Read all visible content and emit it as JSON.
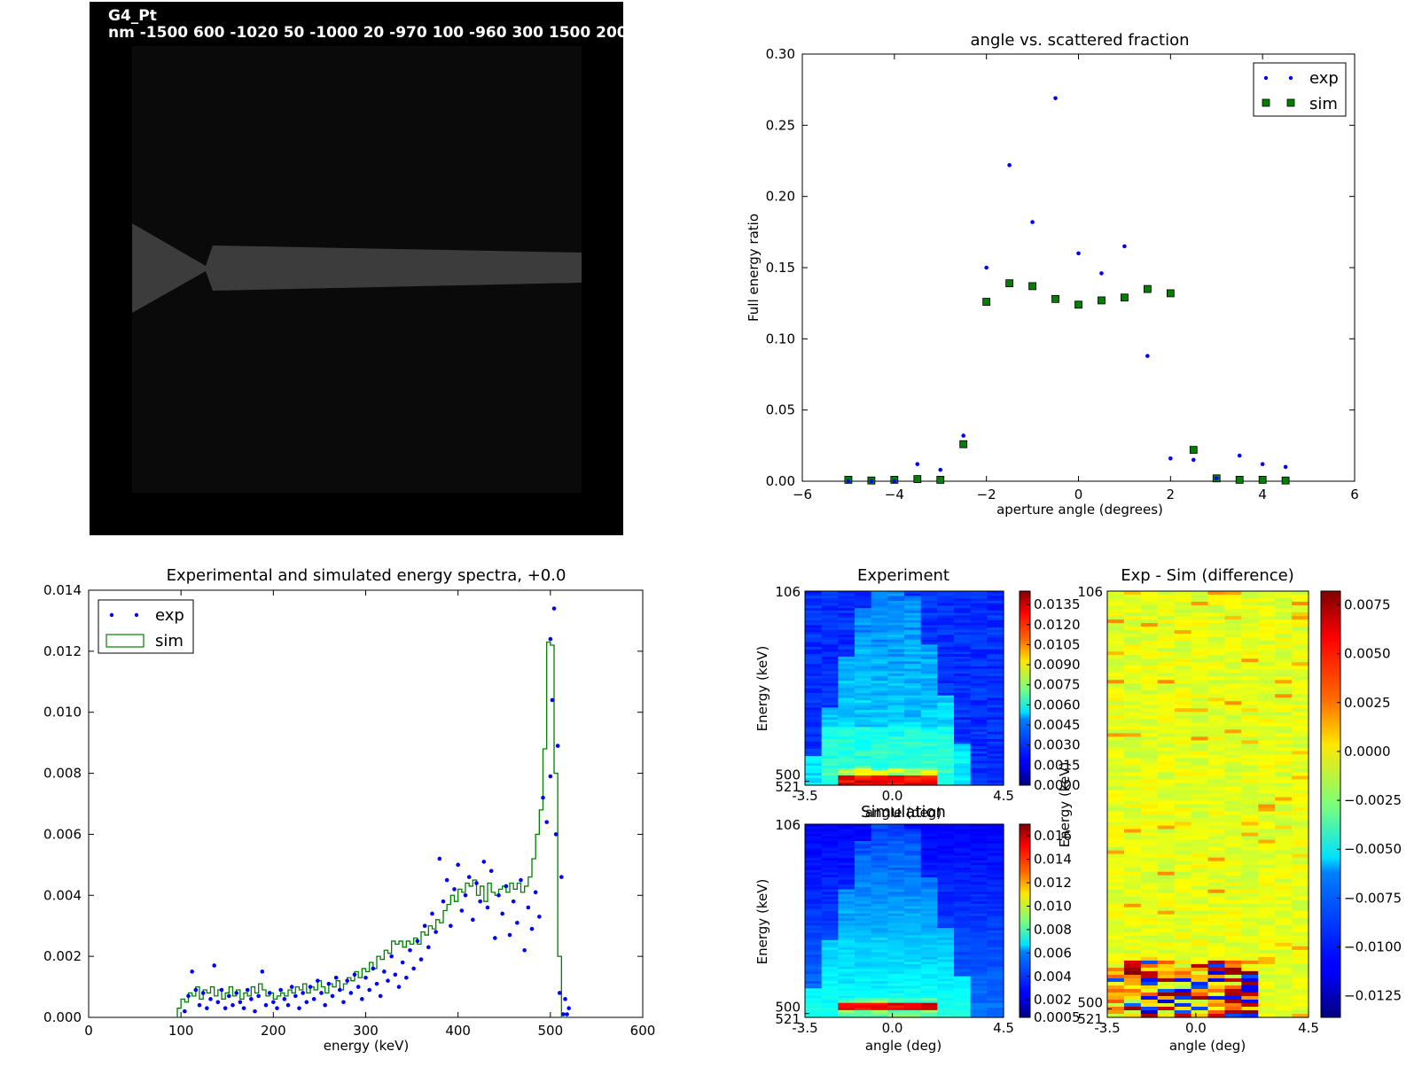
{
  "colors": {
    "exp": "#0000ff",
    "sim": "#008000",
    "sim_marker_edge": "#000000",
    "image_bg": "#000000",
    "image_detector": "#3c3c3c",
    "image_frame": "#0a0a0a"
  },
  "detector_image": {
    "title_line1": "G4_Pt",
    "title_line2": "nm -1500 600 -1020 50 -1000 20 -970 100 -960 300 1500 200"
  },
  "chart_data": [
    {
      "id": "scatter-fraction",
      "type": "scatter",
      "title": "angle vs. scattered fraction",
      "xlabel": "aperture angle (degrees)",
      "ylabel": "Full energy ratio",
      "xlim": [
        -6,
        6
      ],
      "ylim": [
        0,
        0.3
      ],
      "xticks": [
        -6,
        -4,
        -2,
        0,
        2,
        4,
        6
      ],
      "xtick_labels": [
        "−6",
        "−4",
        "−2",
        "0",
        "2",
        "4",
        "6"
      ],
      "yticks": [
        0,
        0.05,
        0.1,
        0.15,
        0.2,
        0.25,
        0.3
      ],
      "ytick_labels": [
        "0.00",
        "0.05",
        "0.10",
        "0.15",
        "0.20",
        "0.25",
        "0.30"
      ],
      "legend_position": "top-right",
      "series": [
        {
          "name": "exp",
          "marker": "dot",
          "x": [
            -5,
            -4.5,
            -4,
            -3.5,
            -3,
            -2.5,
            -2,
            -1.5,
            -1,
            -0.5,
            0,
            0.5,
            1,
            1.5,
            2,
            2.5,
            3,
            3.5,
            4,
            4.5
          ],
          "y": [
            0,
            0,
            0,
            0.012,
            0.008,
            0.032,
            0.15,
            0.222,
            0.182,
            0.269,
            0.16,
            0.146,
            0.165,
            0.088,
            0.016,
            0.015,
            0.002,
            0.018,
            0.012,
            0.01
          ]
        },
        {
          "name": "sim",
          "marker": "square",
          "x": [
            -5,
            -4.5,
            -4,
            -3.5,
            -3,
            -2.5,
            -2,
            -1.5,
            -1,
            -0.5,
            0,
            0.5,
            1,
            1.5,
            2,
            2.5,
            3,
            3.5,
            4,
            4.5
          ],
          "y": [
            0.001,
            0.0005,
            0.001,
            0.0015,
            0.001,
            0.026,
            0.126,
            0.139,
            0.137,
            0.128,
            0.124,
            0.127,
            0.129,
            0.135,
            0.132,
            0.022,
            0.002,
            0.001,
            0.001,
            0.0005
          ]
        }
      ]
    },
    {
      "id": "energy-spectra",
      "type": "line",
      "title": "Experimental and simulated energy spectra, +0.0",
      "xlabel": "energy (keV)",
      "ylabel": "",
      "xlim": [
        0,
        600
      ],
      "ylim": [
        0,
        0.014
      ],
      "xticks": [
        0,
        100,
        200,
        300,
        400,
        500,
        600
      ],
      "xtick_labels": [
        "0",
        "100",
        "200",
        "300",
        "400",
        "500",
        "600"
      ],
      "yticks": [
        0,
        0.002,
        0.004,
        0.006,
        0.008,
        0.01,
        0.012,
        0.014
      ],
      "ytick_labels": [
        "0.000",
        "0.002",
        "0.004",
        "0.006",
        "0.008",
        "0.010",
        "0.012",
        "0.014"
      ],
      "legend_position": "top-left",
      "series": [
        {
          "name": "exp",
          "marker": "dot",
          "x": [
            104,
            108,
            112,
            116,
            120,
            124,
            128,
            132,
            136,
            140,
            144,
            148,
            152,
            156,
            160,
            164,
            168,
            172,
            176,
            180,
            184,
            188,
            192,
            196,
            200,
            204,
            208,
            212,
            216,
            220,
            224,
            228,
            232,
            236,
            240,
            244,
            248,
            252,
            256,
            260,
            264,
            268,
            272,
            276,
            280,
            284,
            288,
            292,
            296,
            300,
            304,
            308,
            312,
            316,
            320,
            324,
            328,
            332,
            336,
            340,
            344,
            348,
            352,
            356,
            360,
            364,
            368,
            372,
            376,
            380,
            384,
            388,
            392,
            396,
            400,
            404,
            408,
            412,
            416,
            420,
            424,
            428,
            432,
            436,
            440,
            444,
            448,
            452,
            456,
            460,
            464,
            468,
            472,
            476,
            480,
            484,
            488,
            492,
            496,
            500,
            504,
            508,
            512,
            516,
            520
          ],
          "y": [
            0.0002,
            0.0007,
            0.0015,
            0.0009,
            0.0004,
            0.0008,
            0.0003,
            0.0006,
            0.0017,
            0.0005,
            0.0009,
            0.0003,
            0.0007,
            0.0004,
            0.0008,
            0.0005,
            0.0003,
            0.0009,
            0.0006,
            0.0002,
            0.0007,
            0.0015,
            0.0004,
            0.0008,
            0.0005,
            0.0003,
            0.0009,
            0.0006,
            0.0004,
            0.001,
            0.0007,
            0.0003,
            0.0008,
            0.0005,
            0.001,
            0.0006,
            0.0012,
            0.0008,
            0.0004,
            0.0011,
            0.0007,
            0.0013,
            0.0009,
            0.0005,
            0.0012,
            0.0008,
            0.0014,
            0.001,
            0.0006,
            0.0013,
            0.0009,
            0.0016,
            0.0011,
            0.0007,
            0.0015,
            0.0012,
            0.002,
            0.0014,
            0.001,
            0.0018,
            0.0013,
            0.0022,
            0.0016,
            0.0025,
            0.0019,
            0.003,
            0.0023,
            0.0034,
            0.0028,
            0.0052,
            0.0038,
            0.0045,
            0.003,
            0.0042,
            0.005,
            0.0035,
            0.004,
            0.0046,
            0.0032,
            0.0044,
            0.0038,
            0.0051,
            0.0036,
            0.0048,
            0.0026,
            0.004,
            0.0034,
            0.0043,
            0.0027,
            0.0038,
            0.0031,
            0.0045,
            0.0022,
            0.0036,
            0.0029,
            0.0041,
            0.0033,
            0.0072,
            0.0064,
            0.0124,
            0.0134,
            0.0089,
            0.0046,
            0.0006,
            0.0003
          ],
          "x_extra": [
            500,
            502,
            506,
            510,
            514,
            518
          ],
          "y_extra": [
            0.0079,
            0.0104,
            0.006,
            0.0008,
            0.0001,
            0.0001
          ]
        },
        {
          "name": "sim",
          "marker": "step",
          "x": [
            96,
            100,
            104,
            108,
            112,
            116,
            120,
            124,
            128,
            132,
            136,
            140,
            144,
            148,
            152,
            156,
            160,
            164,
            168,
            172,
            176,
            180,
            184,
            188,
            192,
            196,
            200,
            204,
            208,
            212,
            216,
            220,
            224,
            228,
            232,
            236,
            240,
            244,
            248,
            252,
            256,
            260,
            264,
            268,
            272,
            276,
            280,
            284,
            288,
            292,
            296,
            300,
            304,
            308,
            312,
            316,
            320,
            324,
            328,
            332,
            336,
            340,
            344,
            348,
            352,
            356,
            360,
            364,
            368,
            372,
            376,
            380,
            384,
            388,
            392,
            396,
            400,
            404,
            408,
            412,
            416,
            420,
            424,
            428,
            432,
            436,
            440,
            444,
            448,
            452,
            456,
            460,
            464,
            468,
            472,
            476,
            480,
            484,
            488,
            492,
            496,
            500,
            504,
            508,
            512
          ],
          "y": [
            0.0003,
            0.0006,
            0.0005,
            0.0008,
            0.0007,
            0.001,
            0.0006,
            0.0009,
            0.0008,
            0.001,
            0.0007,
            0.0009,
            0.0006,
            0.0008,
            0.001,
            0.0007,
            0.0009,
            0.0006,
            0.0008,
            0.0007,
            0.001,
            0.0008,
            0.0011,
            0.0009,
            0.0007,
            0.0008,
            0.0006,
            0.0007,
            0.0008,
            0.0007,
            0.0009,
            0.0008,
            0.001,
            0.0009,
            0.0011,
            0.0008,
            0.001,
            0.0009,
            0.0012,
            0.001,
            0.0008,
            0.0011,
            0.001,
            0.0012,
            0.0009,
            0.0011,
            0.0013,
            0.0012,
            0.0015,
            0.0013,
            0.0016,
            0.0015,
            0.0018,
            0.0016,
            0.002,
            0.0019,
            0.0022,
            0.0021,
            0.0025,
            0.0024,
            0.0025,
            0.0023,
            0.0025,
            0.0024,
            0.0026,
            0.0024,
            0.0028,
            0.0027,
            0.003,
            0.0029,
            0.0032,
            0.0031,
            0.0035,
            0.0037,
            0.004,
            0.0038,
            0.0042,
            0.0041,
            0.0044,
            0.0043,
            0.0045,
            0.004,
            0.0043,
            0.0038,
            0.0044,
            0.0041,
            0.004,
            0.0042,
            0.0043,
            0.0041,
            0.0044,
            0.0042,
            0.0044,
            0.0041,
            0.0043,
            0.0046,
            0.0052,
            0.006,
            0.0068,
            0.0088,
            0.0123,
            0.0122,
            0.008,
            0.002,
            0.0
          ]
        }
      ]
    },
    {
      "id": "heatmap-experiment",
      "type": "heatmap",
      "title": "Experiment",
      "xlabel": "angle (deg)",
      "ylabel": "Energy (keV)",
      "xtick_labels": [
        "-3.5",
        "0.0",
        "4.5"
      ],
      "ytick_labels": [
        "106",
        "500",
        "521"
      ],
      "colorbar_ticks": [
        0,
        0.0015,
        0.003,
        0.0045,
        0.006,
        0.0075,
        0.009,
        0.0105,
        0.012,
        0.0135
      ],
      "colorbar_labels": [
        "0.0000",
        "0.0015",
        "0.0030",
        "0.0045",
        "0.0060",
        "0.0075",
        "0.0090",
        "0.0105",
        "0.0120",
        "0.0135"
      ],
      "colorbar_range": [
        0,
        0.0145
      ]
    },
    {
      "id": "heatmap-simulation",
      "type": "heatmap",
      "title": "Simulation",
      "xlabel": "angle (deg)",
      "ylabel": "Energy (keV)",
      "xtick_labels": [
        "-3.5",
        "0.0",
        "4.5"
      ],
      "ytick_labels": [
        "106",
        "500",
        "521"
      ],
      "colorbar_ticks": [
        0.0005,
        0.002,
        0.004,
        0.006,
        0.008,
        0.01,
        0.012,
        0.014,
        0.016
      ],
      "colorbar_labels": [
        "0.0005",
        "0.002",
        "0.004",
        "0.006",
        "0.008",
        "0.010",
        "0.012",
        "0.014",
        "0.016"
      ],
      "colorbar_range": [
        0.0005,
        0.017
      ]
    },
    {
      "id": "heatmap-difference",
      "type": "heatmap",
      "title": "Exp - Sim (difference)",
      "xlabel": "angle (deg)",
      "ylabel": "Energy (keV)",
      "xtick_labels": [
        "-3.5",
        "0.0",
        "4.5"
      ],
      "ytick_labels": [
        "106",
        "500",
        "521"
      ],
      "colorbar_ticks": [
        -0.0125,
        -0.01,
        -0.0075,
        -0.005,
        -0.0025,
        0,
        0.0025,
        0.005,
        0.0075
      ],
      "colorbar_labels": [
        "−0.0125",
        "−0.0100",
        "−0.0075",
        "−0.0050",
        "−0.0025",
        "0.0000",
        "0.0025",
        "0.0050",
        "0.0075"
      ],
      "colorbar_range": [
        -0.0136,
        0.0082
      ]
    }
  ]
}
